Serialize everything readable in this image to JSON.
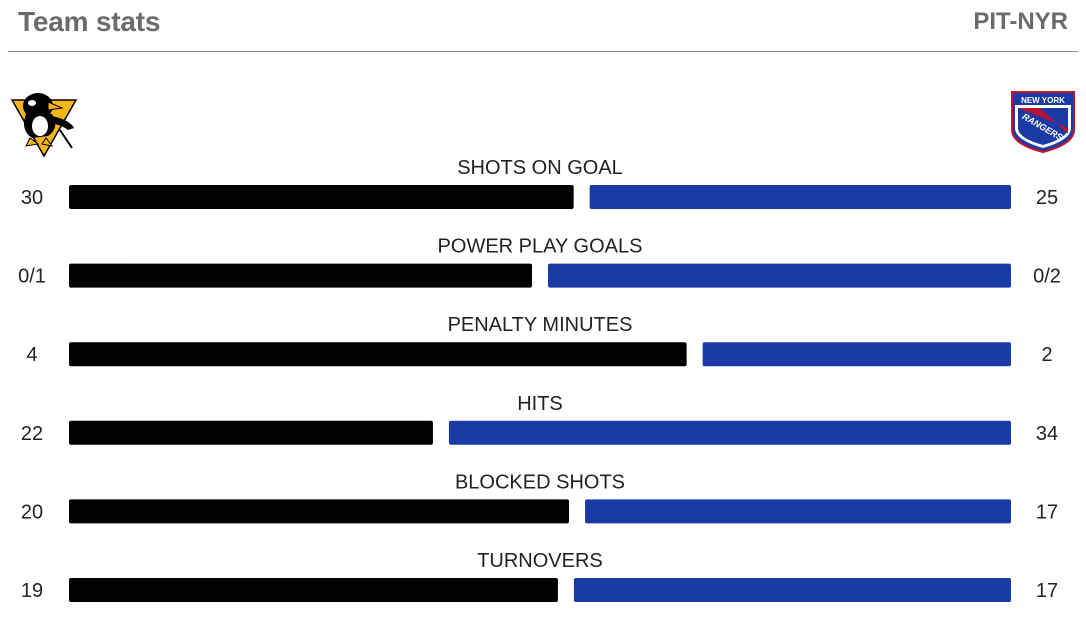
{
  "header": {
    "title": "Team stats",
    "matchup": "PIT-NYR"
  },
  "teams": {
    "home": {
      "logo_icon": "pittsburgh-penguins-logo-icon"
    },
    "away": {
      "logo_icon": "new-york-rangers-logo-icon",
      "logo_text_1": "NEW YORK",
      "logo_text_2": "RANGERS"
    }
  },
  "colors": {
    "home": "#000000",
    "away": "#1a3aa6"
  },
  "chart_data": {
    "type": "bar",
    "categories": [
      "SHOTS ON GOAL",
      "POWER PLAY GOALS",
      "PENALTY MINUTES",
      "HITS",
      "BLOCKED SHOTS",
      "TURNOVERS"
    ],
    "home_labels": [
      "30",
      "0/1",
      "4",
      "22",
      "20",
      "19"
    ],
    "away_labels": [
      "25",
      "0/2",
      "2",
      "34",
      "17",
      "17"
    ],
    "home_share": [
      0.545,
      0.5,
      0.667,
      0.393,
      0.54,
      0.528
    ],
    "away_share": [
      0.455,
      0.5,
      0.333,
      0.607,
      0.46,
      0.472
    ]
  }
}
